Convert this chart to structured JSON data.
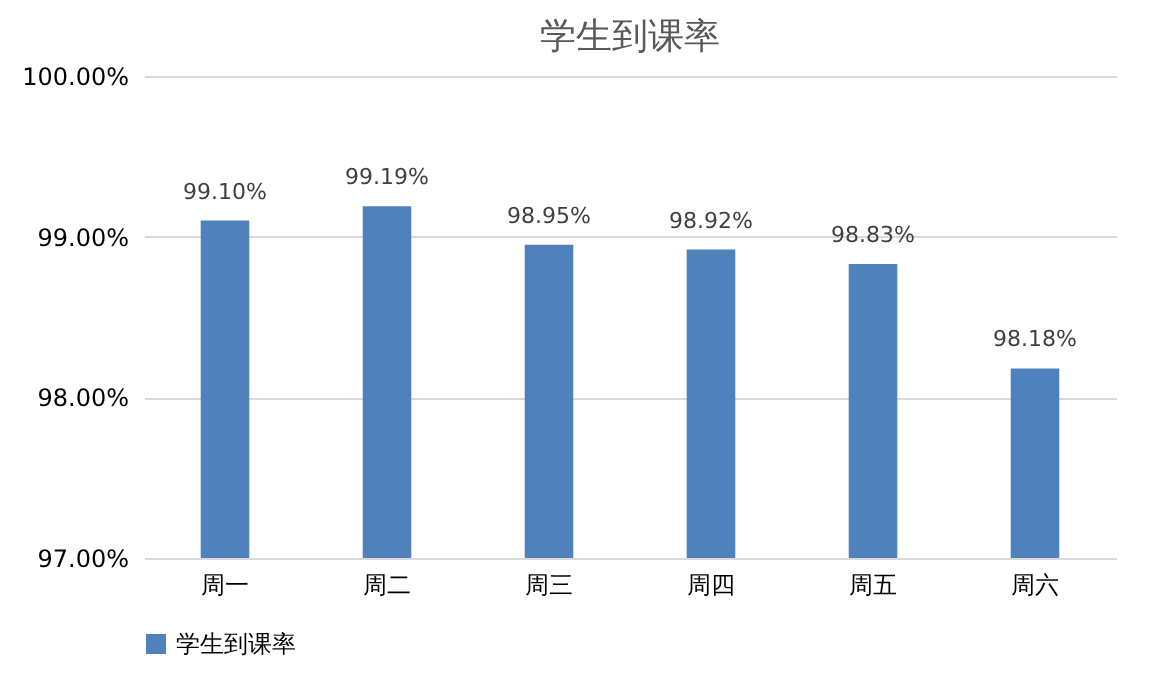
{
  "chart_data": {
    "type": "bar",
    "title": "学生到课率",
    "categories": [
      "周一",
      "周二",
      "周三",
      "周四",
      "周五",
      "周六"
    ],
    "series": [
      {
        "name": "学生到课率",
        "color": "#4f81bd",
        "values": [
          99.1,
          99.19,
          98.95,
          98.92,
          98.83,
          98.18
        ],
        "value_labels": [
          "99.10%",
          "99.19%",
          "98.95%",
          "98.92%",
          "98.83%",
          "98.18%"
        ]
      }
    ],
    "ylim": [
      97,
      100
    ],
    "yticks": [
      {
        "value": 97,
        "label": "97.00%"
      },
      {
        "value": 98,
        "label": "98.00%"
      },
      {
        "value": 99,
        "label": "99.00%"
      },
      {
        "value": 100,
        "label": "100.00%"
      }
    ],
    "grid": "y",
    "legend": "bottom"
  }
}
